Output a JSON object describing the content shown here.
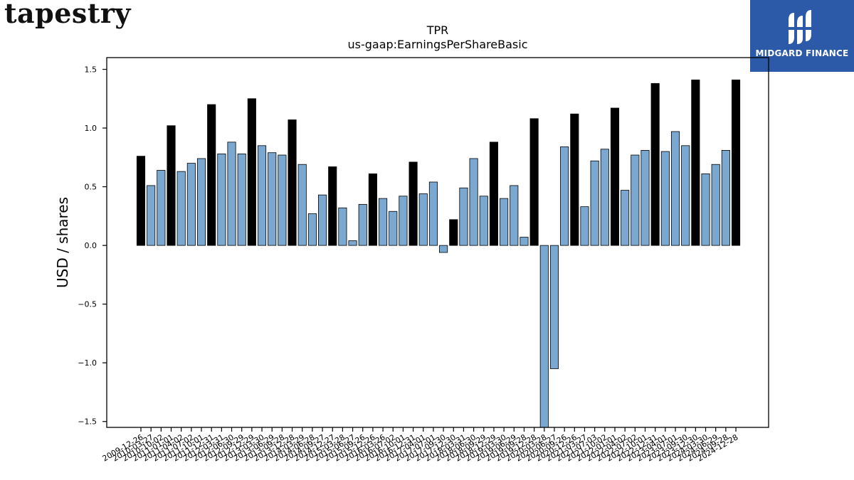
{
  "brand": {
    "name": "tapestry"
  },
  "partner": {
    "name": "MIDGARD FINANCE"
  },
  "chart_data": {
    "type": "bar",
    "title": "TPR",
    "subtitle": "us-gaap:EarningsPerShareBasic",
    "xlabel": "",
    "ylabel": "USD / shares",
    "ylim": [
      -1.55,
      1.6
    ],
    "yticks": [
      -1.5,
      -1.0,
      -0.5,
      0.0,
      0.5,
      1.0,
      1.5
    ],
    "ytick_labels": [
      "−1.5",
      "−1.0",
      "−0.5",
      "0.0",
      "0.5",
      "1.0",
      "1.5"
    ],
    "grid": false,
    "colors": {
      "highlight": "#000000",
      "default": "#7aa8d0",
      "edge": "#000000"
    },
    "xtick_labels_visible": [
      "2009-12-26",
      "2010-03-27",
      "2010-10-02",
      "2011-01-01",
      "2011-04-02",
      "2011-07-02",
      "2011-10-01",
      "2011-12-31",
      "2012-03-31",
      "2012-06-30",
      "2012-09-29",
      "2012-12-29",
      "2013-03-30",
      "2013-06-29",
      "2013-09-28",
      "2013-12-28",
      "2014-03-29",
      "2014-06-28",
      "2014-09-27",
      "2014-12-27",
      "2015-03-28",
      "2015-06-27",
      "2015-09-26",
      "2015-12-26",
      "2016-03-26",
      "2016-07-02",
      "2016-10-01",
      "2016-12-31",
      "2017-04-01",
      "2017-07-01",
      "2017-09-30",
      "2017-12-30",
      "2018-03-31",
      "2018-06-30",
      "2018-09-29",
      "2018-12-29",
      "2019-03-30",
      "2019-06-29",
      "2019-09-28",
      "2019-12-28",
      "2020-03-28",
      "2020-06-27",
      "2020-09-26",
      "2020-12-26",
      "2021-03-27",
      "2021-07-03",
      "2021-10-02",
      "2022-01-01",
      "2022-04-02",
      "2022-07-02",
      "2022-10-01",
      "2022-12-31",
      "2023-04-01",
      "2023-07-01",
      "2023-09-30",
      "2023-12-30",
      "2024-03-30",
      "2024-06-29",
      "2024-09-28",
      "2024-12-28"
    ],
    "values": [
      0.76,
      0.51,
      0.64,
      1.02,
      0.63,
      0.7,
      0.74,
      1.2,
      0.78,
      0.88,
      0.78,
      1.25,
      0.85,
      0.79,
      0.77,
      1.07,
      0.69,
      0.27,
      0.43,
      0.67,
      0.32,
      0.04,
      0.35,
      0.61,
      0.4,
      0.29,
      0.42,
      0.71,
      0.44,
      0.54,
      -0.06,
      0.22,
      0.49,
      0.74,
      0.42,
      0.88,
      0.4,
      0.51,
      0.07,
      1.08,
      -1.55,
      -1.05,
      0.84,
      1.12,
      0.33,
      0.72,
      0.82,
      1.17,
      0.47,
      0.77,
      0.81,
      1.38,
      0.8,
      0.97,
      0.85,
      1.41,
      0.61,
      0.69,
      0.81,
      1.41
    ],
    "highlight": [
      1,
      0,
      0,
      1,
      0,
      0,
      0,
      1,
      0,
      0,
      0,
      1,
      0,
      0,
      0,
      1,
      0,
      0,
      0,
      1,
      0,
      0,
      0,
      1,
      0,
      0,
      0,
      1,
      0,
      0,
      0,
      1,
      0,
      0,
      0,
      1,
      0,
      0,
      0,
      1,
      0,
      0,
      0,
      1,
      0,
      0,
      0,
      1,
      0,
      0,
      0,
      1,
      0,
      0,
      0,
      1,
      0,
      0,
      0,
      1
    ]
  }
}
